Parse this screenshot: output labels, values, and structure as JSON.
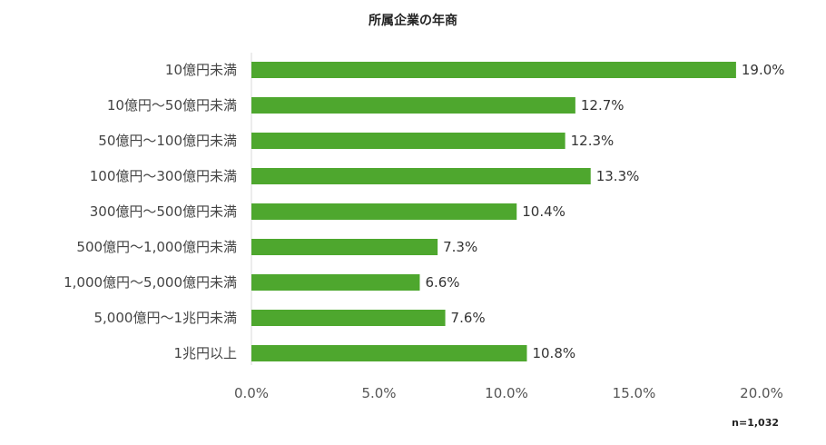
{
  "chart_data": {
    "type": "bar",
    "orientation": "horizontal",
    "title": "所属企業の年商",
    "categories": [
      "10億円未満",
      "10億円～50億円未満",
      "50億円～100億円未満",
      "100億円～300億円未満",
      "300億円～500億円未満",
      "500億円～1,000億円未満",
      "1,000億円～5,000億円未満",
      "5,000億円～1兆円未満",
      "1兆円以上"
    ],
    "values": [
      19.0,
      12.7,
      12.3,
      13.3,
      10.4,
      7.3,
      6.6,
      7.6,
      10.8
    ],
    "value_labels": [
      "19.0%",
      "12.7%",
      "12.3%",
      "13.3%",
      "10.4%",
      "7.3%",
      "6.6%",
      "7.6%",
      "10.8%"
    ],
    "xlim": [
      0,
      20
    ],
    "xticks": [
      0,
      5,
      10,
      15,
      20
    ],
    "xtick_labels": [
      "0.0%",
      "5.0%",
      "10.0%",
      "15.0%",
      "20.0%"
    ],
    "xlabel": "",
    "ylabel": "",
    "grid": false,
    "bar_color": "#4ea72e",
    "note": "n=1,032"
  }
}
